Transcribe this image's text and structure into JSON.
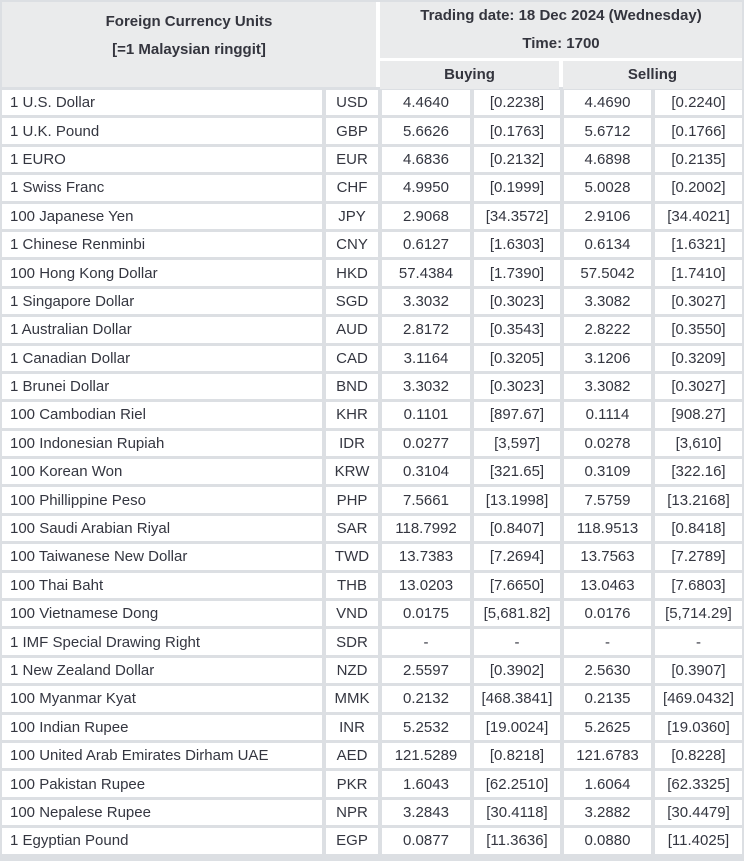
{
  "title": {
    "line1": "Foreign Currency Units",
    "line2": "[=1 Malaysian ringgit]"
  },
  "trading": {
    "date_label": "Trading date: 18 Dec 2024 (Wednesday)",
    "time_label": "Time: 1700"
  },
  "columns": {
    "buying": "Buying",
    "selling": "Selling"
  },
  "colors": {
    "frame_and_gridlines": "#dcdfe3",
    "header_cell": "#eaebec",
    "data_cell": "#ffffff",
    "text": "#343640"
  },
  "table": {
    "rows": [
      {
        "name": "1 U.S. Dollar",
        "code": "USD",
        "buy": "4.4640",
        "buy_unit": "[0.2238]",
        "sell": "4.4690",
        "sell_unit": "[0.2240]"
      },
      {
        "name": "1 U.K. Pound",
        "code": "GBP",
        "buy": "5.6626",
        "buy_unit": "[0.1763]",
        "sell": "5.6712",
        "sell_unit": "[0.1766]"
      },
      {
        "name": "1 EURO",
        "code": "EUR",
        "buy": "4.6836",
        "buy_unit": "[0.2132]",
        "sell": "4.6898",
        "sell_unit": "[0.2135]"
      },
      {
        "name": "1 Swiss Franc",
        "code": "CHF",
        "buy": "4.9950",
        "buy_unit": "[0.1999]",
        "sell": "5.0028",
        "sell_unit": "[0.2002]"
      },
      {
        "name": "100 Japanese Yen",
        "code": "JPY",
        "buy": "2.9068",
        "buy_unit": "[34.3572]",
        "sell": "2.9106",
        "sell_unit": "[34.4021]"
      },
      {
        "name": "1 Chinese Renminbi",
        "code": "CNY",
        "buy": "0.6127",
        "buy_unit": "[1.6303]",
        "sell": "0.6134",
        "sell_unit": "[1.6321]"
      },
      {
        "name": "100 Hong Kong Dollar",
        "code": "HKD",
        "buy": "57.4384",
        "buy_unit": "[1.7390]",
        "sell": "57.5042",
        "sell_unit": "[1.7410]"
      },
      {
        "name": "1 Singapore Dollar",
        "code": "SGD",
        "buy": "3.3032",
        "buy_unit": "[0.3023]",
        "sell": "3.3082",
        "sell_unit": "[0.3027]"
      },
      {
        "name": "1 Australian Dollar",
        "code": "AUD",
        "buy": "2.8172",
        "buy_unit": "[0.3543]",
        "sell": "2.8222",
        "sell_unit": "[0.3550]"
      },
      {
        "name": "1 Canadian Dollar",
        "code": "CAD",
        "buy": "3.1164",
        "buy_unit": "[0.3205]",
        "sell": "3.1206",
        "sell_unit": "[0.3209]"
      },
      {
        "name": "1 Brunei Dollar",
        "code": "BND",
        "buy": "3.3032",
        "buy_unit": "[0.3023]",
        "sell": "3.3082",
        "sell_unit": "[0.3027]"
      },
      {
        "name": "100 Cambodian Riel",
        "code": "KHR",
        "buy": "0.1101",
        "buy_unit": "[897.67]",
        "sell": "0.1114",
        "sell_unit": "[908.27]"
      },
      {
        "name": "100 Indonesian Rupiah",
        "code": "IDR",
        "buy": "0.0277",
        "buy_unit": "[3,597]",
        "sell": "0.0278",
        "sell_unit": "[3,610]"
      },
      {
        "name": "100 Korean Won",
        "code": "KRW",
        "buy": "0.3104",
        "buy_unit": "[321.65]",
        "sell": "0.3109",
        "sell_unit": "[322.16]"
      },
      {
        "name": "100 Phillippine Peso",
        "code": "PHP",
        "buy": "7.5661",
        "buy_unit": "[13.1998]",
        "sell": "7.5759",
        "sell_unit": "[13.2168]"
      },
      {
        "name": "100 Saudi Arabian Riyal",
        "code": "SAR",
        "buy": "118.7992",
        "buy_unit": "[0.8407]",
        "sell": "118.9513",
        "sell_unit": "[0.8418]"
      },
      {
        "name": "100 Taiwanese New Dollar",
        "code": "TWD",
        "buy": "13.7383",
        "buy_unit": "[7.2694]",
        "sell": "13.7563",
        "sell_unit": "[7.2789]"
      },
      {
        "name": "100 Thai Baht",
        "code": "THB",
        "buy": "13.0203",
        "buy_unit": "[7.6650]",
        "sell": "13.0463",
        "sell_unit": "[7.6803]"
      },
      {
        "name": "100 Vietnamese Dong",
        "code": "VND",
        "buy": "0.0175",
        "buy_unit": "[5,681.82]",
        "sell": "0.0176",
        "sell_unit": "[5,714.29]"
      },
      {
        "name": "1 IMF Special Drawing Right",
        "code": "SDR",
        "buy": "-",
        "buy_unit": "-",
        "sell": "-",
        "sell_unit": "-"
      },
      {
        "name": "1 New Zealand Dollar",
        "code": "NZD",
        "buy": "2.5597",
        "buy_unit": "[0.3902]",
        "sell": "2.5630",
        "sell_unit": "[0.3907]"
      },
      {
        "name": "100 Myanmar Kyat",
        "code": "MMK",
        "buy": "0.2132",
        "buy_unit": "[468.3841]",
        "sell": "0.2135",
        "sell_unit": "[469.0432]"
      },
      {
        "name": "100 Indian Rupee",
        "code": "INR",
        "buy": "5.2532",
        "buy_unit": "[19.0024]",
        "sell": "5.2625",
        "sell_unit": "[19.0360]"
      },
      {
        "name": "100 United Arab Emirates Dirham UAE",
        "code": "AED",
        "buy": "121.5289",
        "buy_unit": "[0.8218]",
        "sell": "121.6783",
        "sell_unit": "[0.8228]"
      },
      {
        "name": "100 Pakistan Rupee",
        "code": "PKR",
        "buy": "1.6043",
        "buy_unit": "[62.2510]",
        "sell": "1.6064",
        "sell_unit": "[62.3325]"
      },
      {
        "name": "100 Nepalese Rupee",
        "code": "NPR",
        "buy": "3.2843",
        "buy_unit": "[30.4118]",
        "sell": "3.2882",
        "sell_unit": "[30.4479]"
      },
      {
        "name": "1 Egyptian Pound",
        "code": "EGP",
        "buy": "0.0877",
        "buy_unit": "[11.3636]",
        "sell": "0.0880",
        "sell_unit": "[11.4025]"
      }
    ]
  }
}
